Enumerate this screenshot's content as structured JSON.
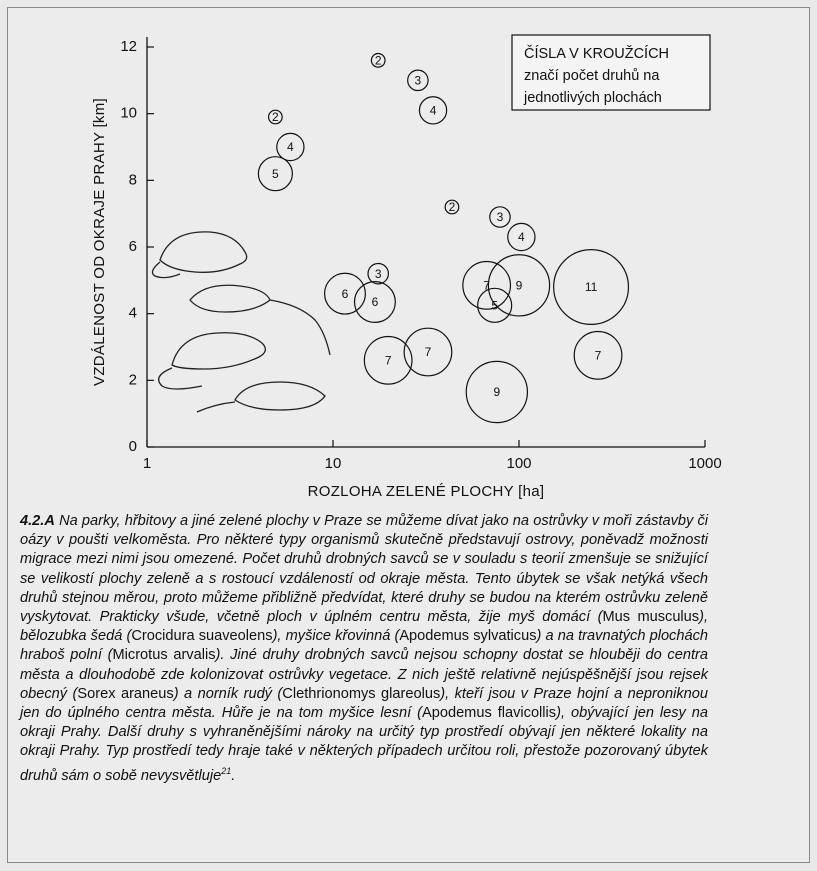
{
  "chart_data": {
    "type": "bubble",
    "x_label": "ROZLOHA ZELENÉ PLOCHY [ha]",
    "y_label": "VZDÁLENOST OD OKRAJE PRAHY [km]",
    "annotation": [
      "ČÍSLA V KROUŽCÍCH",
      "značí počet druhů na",
      "jednotlivých plochách"
    ],
    "xlim": [
      1,
      1000
    ],
    "xticks": [
      1,
      10,
      100,
      1000
    ],
    "xlog": true,
    "ylim": [
      0,
      12.3
    ],
    "yticks": [
      0,
      2,
      4,
      6,
      8,
      10,
      12
    ],
    "series": [
      {
        "color": "#111111",
        "x": [
          17.5,
          28.6,
          34.5,
          4.9,
          5.9,
          4.9,
          43.6,
          79,
          103,
          17.5,
          11.6,
          16.8,
          67,
          100,
          74,
          244,
          32.4,
          19.8,
          266,
          76
        ],
        "values": [
          11.6,
          11.0,
          10.1,
          9.9,
          9.0,
          8.2,
          7.2,
          6.9,
          6.3,
          5.2,
          4.6,
          4.35,
          4.85,
          4.85,
          4.25,
          4.8,
          2.85,
          2.6,
          2.75,
          1.65
        ],
        "sizes": [
          2,
          3,
          4,
          2,
          4,
          5,
          2,
          3,
          4,
          3,
          6,
          6,
          7,
          9,
          5,
          11,
          7,
          7,
          7,
          9
        ]
      }
    ]
  },
  "caption": {
    "label": "4.2.A",
    "runs": [
      "Na parky, hřbitovy a jiné zelené plochy v Praze se můžeme dívat jako na ostrůvky v moři zástavby či oázy v poušti velkoměsta. Pro některé typy organismů skutečně představují ostrovy, poněvadž možnosti migrace mezi nimi jsou omezené. Počet druhů drobných savců se v souladu s teorií zmenšuje se snižující se velikostí plochy zeleně a s rostoucí vzdáleností od okraje města. Tento úbytek se však netýká všech druhů stejnou měrou, proto můžeme přibližně předvídat, které druhy se budou na kterém ostrůvku zeleně vyskytovat. Prakticky všude, včetně ploch v úplném centru města, žije myš domácí (",
      "Mus musculus",
      "), bělozubka šedá (",
      "Crocidura suaveolens",
      "), myšice křovinná (",
      "Apodemus sylvaticus",
      ") a na travnatých plochách hraboš polní (",
      "Microtus arvalis",
      "). Jiné druhy drobných savců nejsou schopny dostat se hlouběji do centra města a dlouhodobě zde kolonizovat ostrůvky vegetace. Z nich ještě relativně nejúspěšnější jsou rejsek obecný (",
      "Sorex araneus",
      ") a norník rudý (",
      "Clethrionomys glareolus",
      "), kteří jsou v Praze hojní a neproniknou jen do úplného centra města. Hůře je na tom myšice lesní (",
      "Apodemus flavicollis",
      "), obývající jen lesy na okraji Prahy. Další druhy s vyhraněnějšími nároky na určitý typ prostředí obývají jen některé lokality na okraji Prahy. Typ prostředí tedy hraje také v některých případech určitou roli, přestože pozorovaný úbytek druhů sám o sobě nevysvětluje"
    ],
    "footnote": "21",
    "end": "."
  }
}
